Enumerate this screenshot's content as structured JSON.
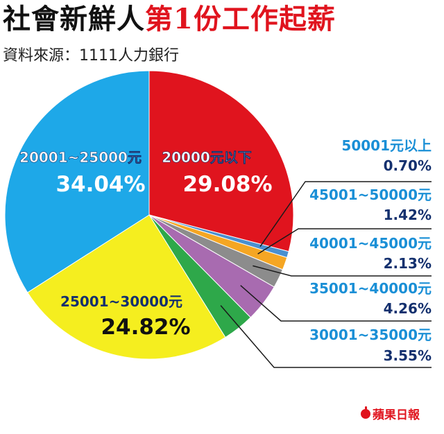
{
  "header": {
    "title_main": "社會新鮮人",
    "title_highlight": "第1份工作起薪",
    "source": "資料來源：1111人力銀行"
  },
  "chart_data": {
    "type": "pie",
    "title": "社會新鮮人第1份工作起薪",
    "slices": [
      {
        "label": "20000元以下",
        "value": 29.08,
        "value_label": "29.08%",
        "color": "#e0141e"
      },
      {
        "label": "50001元以上",
        "value": 0.7,
        "value_label": "0.70%",
        "color": "#4a90d0"
      },
      {
        "label": "45001~50000元",
        "value": 1.42,
        "value_label": "1.42%",
        "color": "#f5a623"
      },
      {
        "label": "40001~45000元",
        "value": 2.13,
        "value_label": "2.13%",
        "color": "#8c8c8c"
      },
      {
        "label": "35001~40000元",
        "value": 4.26,
        "value_label": "4.26%",
        "color": "#a86bb0"
      },
      {
        "label": "30001~35000元",
        "value": 3.55,
        "value_label": "3.55%",
        "color": "#2ea84a"
      },
      {
        "label": "25001~30000元",
        "value": 24.82,
        "value_label": "24.82%",
        "color": "#f5ee1f"
      },
      {
        "label": "20001~25000元",
        "value": 34.04,
        "value_label": "34.04%",
        "color": "#1ea8e8"
      }
    ]
  },
  "footer": {
    "logo_text": "蘋果日報",
    "logo_icon": "apple-icon"
  }
}
